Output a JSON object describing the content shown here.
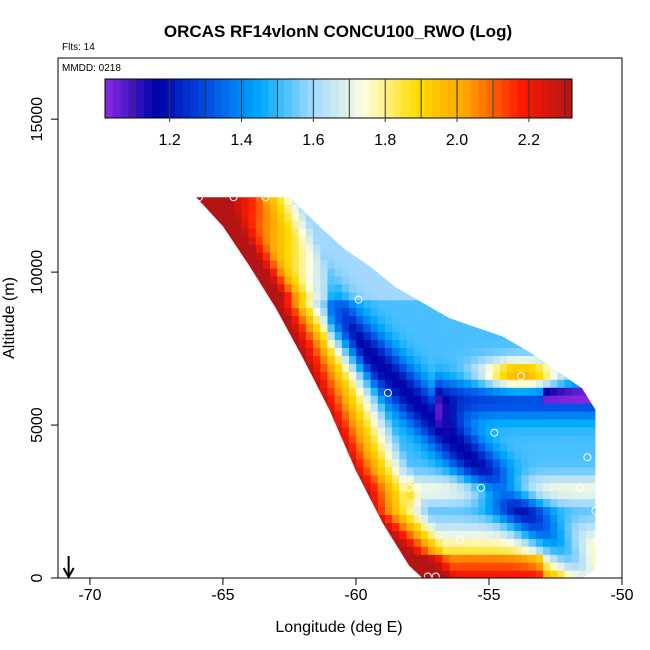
{
  "chart_data": {
    "type": "heatmap",
    "title": "ORCAS RF14vlonN CONCU100_RWO (Log)",
    "flights_label": "Flts: 14",
    "date_label": "MMDD: 0218",
    "xlabel": "Longitude (deg E)",
    "ylabel": "Altitude (m)",
    "xlim": [
      -71.2,
      -50
    ],
    "ylim": [
      0,
      17000
    ],
    "x_ticks": [
      -70,
      -65,
      -60,
      -55,
      -50
    ],
    "x_tick_labels": [
      "-70",
      "-65",
      "-60",
      "-55",
      "-50"
    ],
    "y_ticks": [
      0,
      5000,
      10000,
      15000
    ],
    "y_tick_labels": [
      "0",
      "5000",
      "10000",
      "15000"
    ],
    "colorbar": {
      "min": 1.02,
      "max": 2.32,
      "ticks": [
        1.2,
        1.4,
        1.6,
        1.8,
        2.0,
        2.2
      ],
      "tick_labels": [
        "1.2",
        "1.4",
        "1.6",
        "1.8",
        "2.0",
        "2.2"
      ],
      "colors": [
        "#8a2be2",
        "#0000a8",
        "#0050e6",
        "#00aaff",
        "#a0d8ff",
        "#ffffe0",
        "#ffdc00",
        "#ffa000",
        "#ff1a00",
        "#b41414"
      ]
    },
    "field": {
      "boundary_lon": [
        -66.0,
        -65.5,
        -64.5,
        -63.5,
        -62.5,
        -61.5,
        -60.5,
        -59.5,
        -58.5,
        -57.5,
        -56.5,
        -55.5,
        -54.5,
        -53.5,
        -52.5,
        -51.5,
        -51.0,
        -51.0,
        -51.2,
        -51.5,
        -52.0,
        -53.0,
        -54.0,
        -55.0,
        -56.0,
        -57.0,
        -57.5,
        -58.0,
        -59.0,
        -60.0,
        -61.0,
        -62.0,
        -63.0,
        -64.0,
        -65.0,
        -66.0
      ],
      "boundary_alt": [
        12450,
        12450,
        12450,
        12450,
        12450,
        11600,
        10800,
        10200,
        9500,
        9000,
        8500,
        8200,
        7900,
        7400,
        6800,
        6200,
        5500,
        300,
        150,
        0,
        0,
        0,
        0,
        0,
        0,
        0,
        0,
        400,
        1800,
        3500,
        5500,
        7200,
        8800,
        10200,
        11500,
        12450
      ]
    },
    "profiles": [
      {
        "lon": -65.9,
        "alt": 12450
      },
      {
        "lon": -64.6,
        "alt": 12450
      },
      {
        "lon": -63.4,
        "alt": 12450
      },
      {
        "lon": -62.1,
        "alt": 12450
      },
      {
        "lon": -60.9,
        "alt": 11800
      },
      {
        "lon": -59.9,
        "alt": 9100
      },
      {
        "lon": -58.8,
        "alt": 6050
      },
      {
        "lon": -58.0,
        "alt": 2950
      },
      {
        "lon": -57.3,
        "alt": 50
      },
      {
        "lon": -57.0,
        "alt": 50
      },
      {
        "lon": -56.1,
        "alt": 1250
      },
      {
        "lon": -55.3,
        "alt": 2950
      },
      {
        "lon": -54.8,
        "alt": 4750
      },
      {
        "lon": -53.8,
        "alt": 6600
      },
      {
        "lon": -53.0,
        "alt": 7600
      },
      {
        "lon": -51.6,
        "alt": 2950
      },
      {
        "lon": -51.3,
        "alt": 3950
      },
      {
        "lon": -51.0,
        "alt": 2200
      },
      {
        "lon": -50.9,
        "alt": 400
      }
    ],
    "arrow_lon": -70.8
  }
}
